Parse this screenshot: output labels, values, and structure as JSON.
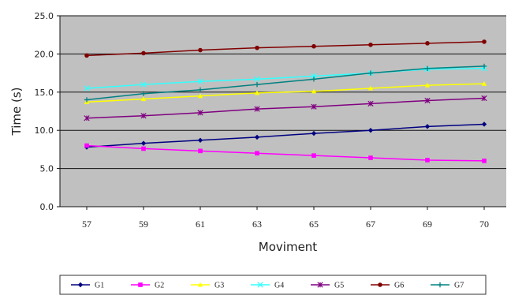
{
  "chart_data": {
    "type": "line",
    "title": "",
    "xlabel": "Moviment",
    "ylabel": "Time (s)",
    "categories": [
      "57",
      "59",
      "61",
      "63",
      "65",
      "67",
      "69",
      "70"
    ],
    "ylim": [
      0,
      25
    ],
    "yticks": [
      "0.0",
      "5.0",
      "10.0",
      "15.0",
      "20.0",
      "25.0"
    ],
    "grid": true,
    "legend_position": "bottom",
    "plot_background": "#c0c0c0",
    "series": [
      {
        "name": "G1",
        "color": "#000080",
        "marker": "diamond",
        "values": [
          7.8,
          8.3,
          8.7,
          9.1,
          9.6,
          10.0,
          10.5,
          10.8
        ]
      },
      {
        "name": "G2",
        "color": "#ff00ff",
        "marker": "square",
        "values": [
          8.0,
          7.6,
          7.3,
          7.0,
          6.7,
          6.4,
          6.1,
          6.0
        ]
      },
      {
        "name": "G3",
        "color": "#ffff00",
        "marker": "triangle",
        "values": [
          13.7,
          14.1,
          14.5,
          14.9,
          15.1,
          15.5,
          15.9,
          16.1
        ]
      },
      {
        "name": "G4",
        "color": "#33ffff",
        "marker": "x",
        "values": [
          15.5,
          16.0,
          16.4,
          16.7,
          17.1,
          17.5,
          18.0,
          18.1
        ]
      },
      {
        "name": "G5",
        "color": "#800080",
        "marker": "star",
        "values": [
          11.6,
          11.9,
          12.3,
          12.8,
          13.1,
          13.5,
          13.9,
          14.2
        ]
      },
      {
        "name": "G6",
        "color": "#800000",
        "marker": "circle",
        "values": [
          19.8,
          20.1,
          20.5,
          20.8,
          21.0,
          21.2,
          21.4,
          21.6
        ]
      },
      {
        "name": "G7",
        "color": "#008080",
        "marker": "plus",
        "values": [
          14.0,
          14.8,
          15.3,
          16.0,
          16.7,
          17.5,
          18.1,
          18.4
        ]
      }
    ]
  }
}
